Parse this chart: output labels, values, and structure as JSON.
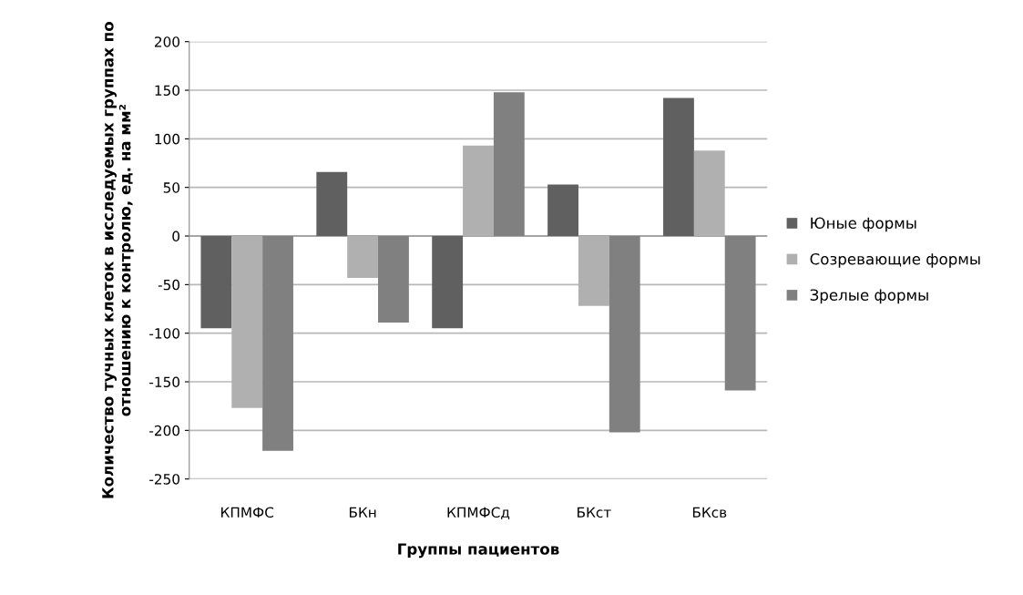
{
  "chart_data": {
    "type": "bar",
    "xlabel": "Группы пациентов",
    "ylabel": "Количество тучных клеток в исследуемых группах по отношению к контролю, ед. на мм²",
    "categories": [
      "КПМФС",
      "БКн",
      "КПМФСд",
      "БКст",
      "БКсв"
    ],
    "series": [
      {
        "name": "Юные формы",
        "color": "#606060",
        "values": [
          -95,
          66,
          -95,
          53,
          142
        ]
      },
      {
        "name": "Созревающие формы",
        "color": "#b0b0b0",
        "values": [
          -177,
          -43,
          93,
          -72,
          88
        ]
      },
      {
        "name": "Зрелые формы",
        "color": "#808080",
        "values": [
          -221,
          -89,
          148,
          -202,
          -159
        ]
      }
    ],
    "ylim": [
      -250,
      200
    ],
    "yticks": [
      -250,
      -200,
      -150,
      -100,
      -50,
      0,
      50,
      100,
      150,
      200
    ],
    "grid": "y",
    "legend": "right"
  }
}
